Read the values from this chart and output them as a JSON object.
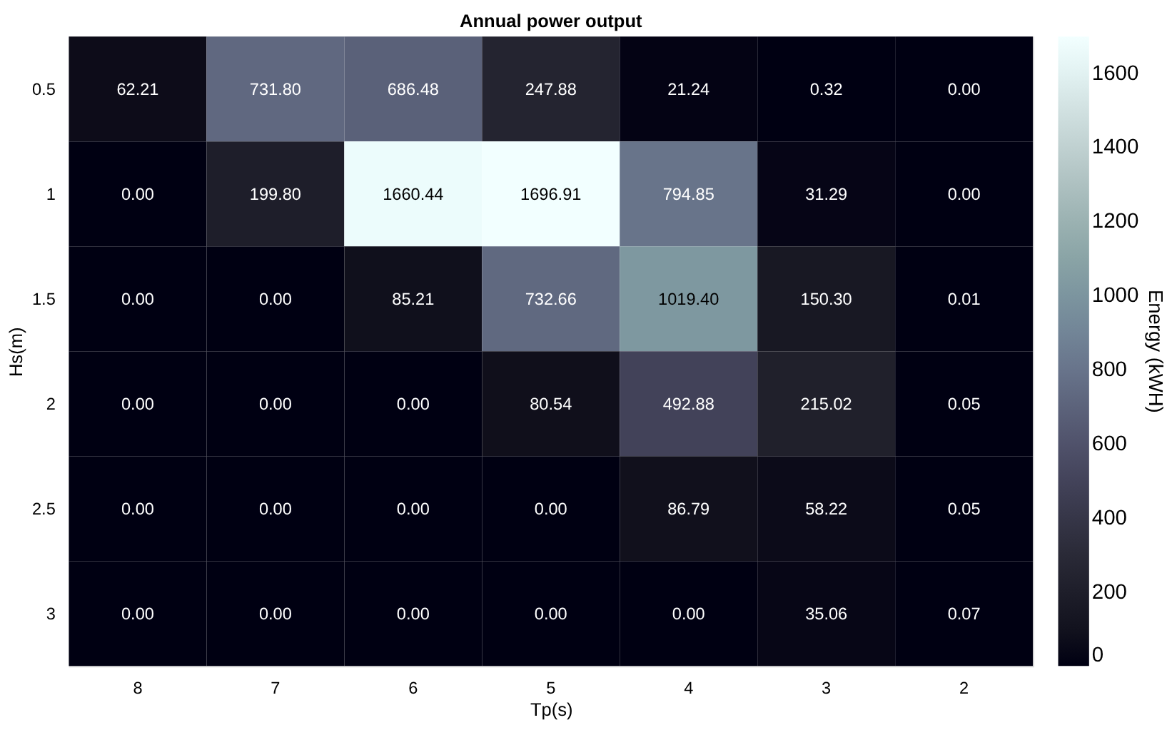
{
  "chart_data": {
    "type": "heatmap",
    "title": "Annual power output",
    "xlabel": "Tp(s)",
    "ylabel": "Hs(m)",
    "clabel": "Energy (kWH)",
    "categories": [
      "8",
      "7",
      "6",
      "5",
      "4",
      "3",
      "2"
    ],
    "y_categories": [
      "0.5",
      "1",
      "1.5",
      "2",
      "2.5",
      "3"
    ],
    "cells": [
      [
        62.21,
        731.8,
        686.48,
        247.88,
        21.24,
        0.32,
        0.0
      ],
      [
        0.0,
        199.8,
        1660.44,
        1696.91,
        794.85,
        31.29,
        0.0
      ],
      [
        0.0,
        0.0,
        85.21,
        732.66,
        1019.4,
        150.3,
        0.01
      ],
      [
        0.0,
        0.0,
        0.0,
        80.54,
        492.88,
        215.02,
        0.05
      ],
      [
        0.0,
        0.0,
        0.0,
        0.0,
        86.79,
        58.22,
        0.05
      ],
      [
        0.0,
        0.0,
        0.0,
        0.0,
        0.0,
        35.06,
        0.07
      ]
    ],
    "cell_labels": [
      [
        "62.21",
        "731.80",
        "686.48",
        "247.88",
        "21.24",
        "0.32",
        "0.00"
      ],
      [
        "0.00",
        "199.80",
        "1660.44",
        "1696.91",
        "794.85",
        "31.29",
        "0.00"
      ],
      [
        "0.00",
        "0.00",
        "85.21",
        "732.66",
        "1019.40",
        "150.30",
        "0.01"
      ],
      [
        "0.00",
        "0.00",
        "0.00",
        "80.54",
        "492.88",
        "215.02",
        "0.05"
      ],
      [
        "0.00",
        "0.00",
        "0.00",
        "0.00",
        "86.79",
        "58.22",
        "0.05"
      ],
      [
        "0.00",
        "0.00",
        "0.00",
        "0.00",
        "0.00",
        "35.06",
        "0.07"
      ]
    ],
    "clim": [
      0,
      1696.91
    ],
    "cticks": [
      0,
      200,
      400,
      600,
      800,
      1000,
      1200,
      1400,
      1600
    ]
  }
}
